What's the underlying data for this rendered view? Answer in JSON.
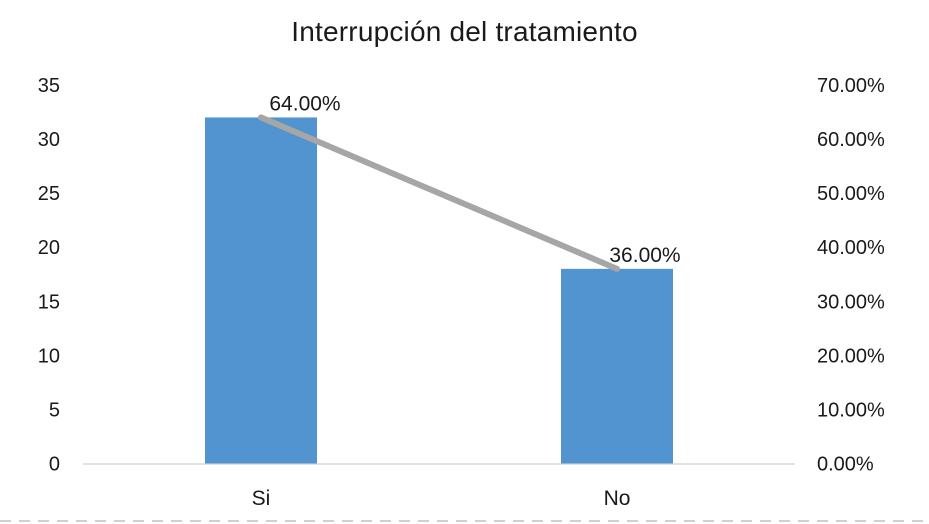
{
  "chart_data": {
    "type": "bar",
    "title": "Interrupción del tratamiento",
    "categories": [
      "Si",
      "No"
    ],
    "series": [
      {
        "chart_type": "bar",
        "axis": "left",
        "values": [
          32,
          18
        ]
      },
      {
        "chart_type": "line",
        "axis": "right",
        "values": [
          64,
          36
        ],
        "data_labels": [
          "64.00%",
          "36.00%"
        ]
      }
    ],
    "left_axis": {
      "min": 0,
      "max": 35,
      "step": 5,
      "tick_labels": [
        "0",
        "5",
        "10",
        "15",
        "20",
        "25",
        "30",
        "35"
      ]
    },
    "right_axis": {
      "min": 0,
      "max": 70,
      "step": 10,
      "tick_labels": [
        "0.00%",
        "10.00%",
        "20.00%",
        "30.00%",
        "40.00%",
        "50.00%",
        "60.00%",
        "70.00%"
      ]
    },
    "grid": false,
    "legend_position": "none"
  },
  "colors": {
    "bar": "#5294CF",
    "line": "#A6A6A6",
    "axis_line": "#D9D9D9",
    "text": "#1A1A1A",
    "background": "#FFFFFF",
    "page_divider": "#D0D0D0"
  }
}
